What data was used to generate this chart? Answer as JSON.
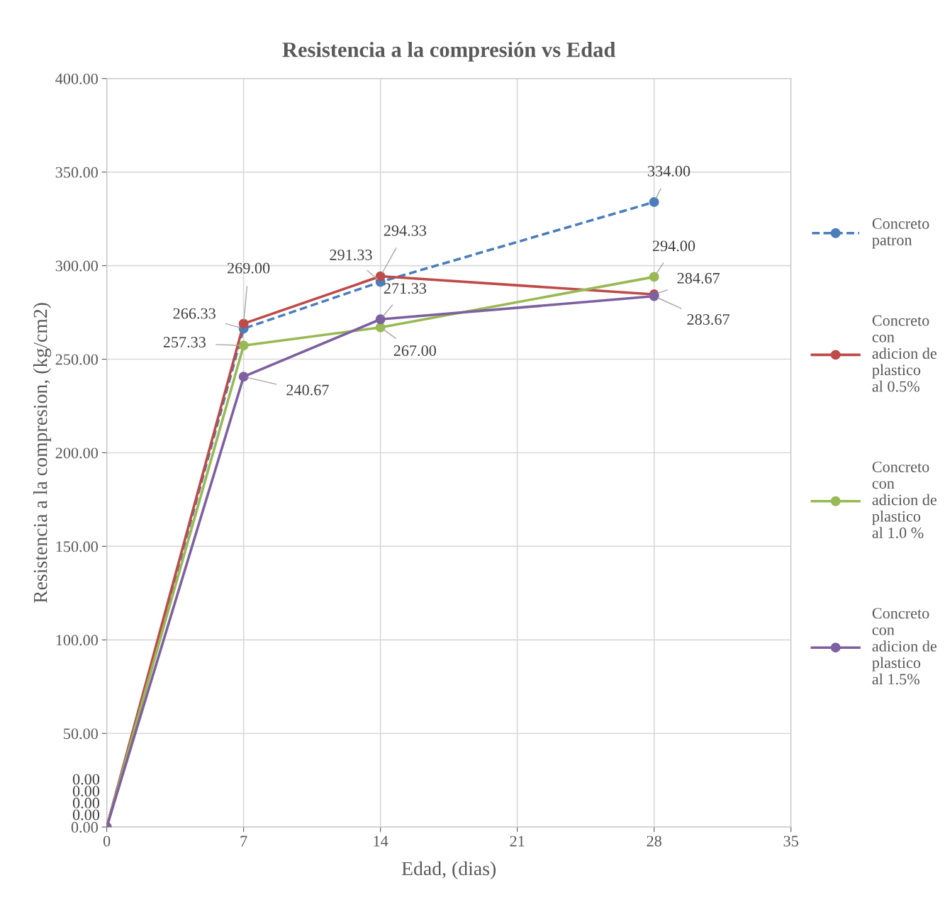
{
  "chart_data": {
    "type": "line",
    "title": "Resistencia a la compresión vs Edad",
    "xlabel": "Edad, (dias)",
    "ylabel": "Resistencia a la compresion, (kg/cm2)",
    "x": [
      0,
      7,
      14,
      28
    ],
    "series": [
      {
        "name": "Concreto patron",
        "color": "#4a7ebb",
        "line_style": "dashed",
        "values": [
          0,
          266.33,
          291.33,
          334.0
        ],
        "value_labels": [
          "0.00",
          "266.33",
          "291.33",
          "334.00"
        ]
      },
      {
        "name": "Concreto con adicion de plastico al 0.5%",
        "color": "#be4b48",
        "line_style": "solid",
        "values": [
          0,
          269.0,
          294.33,
          284.67
        ],
        "value_labels": [
          "0.00",
          "269.00",
          "294.33",
          "284.67"
        ]
      },
      {
        "name": "Concreto con adicion de plastico al 1.0 %",
        "color": "#98b954",
        "line_style": "solid",
        "values": [
          0,
          257.33,
          267.0,
          294.0
        ],
        "value_labels": [
          "0.00",
          "257.33",
          "267.00",
          "294.00"
        ]
      },
      {
        "name": "Concreto con adicion de plastico al 1.5%",
        "color": "#7d60a0",
        "line_style": "solid",
        "values": [
          0,
          240.67,
          271.33,
          283.67
        ],
        "value_labels": [
          "0.00",
          "240.67",
          "271.33",
          "283.67"
        ]
      }
    ],
    "xlim": [
      0,
      35
    ],
    "xticks": [
      0,
      7,
      14,
      21,
      28,
      35
    ],
    "ylim": [
      0,
      400
    ],
    "yticks": [
      {
        "value": 0,
        "label": "0.00"
      },
      {
        "value": 50,
        "label": "50.00"
      },
      {
        "value": 100,
        "label": "100.00"
      },
      {
        "value": 150,
        "label": "150.00"
      },
      {
        "value": 200,
        "label": "200.00"
      },
      {
        "value": 250,
        "label": "250.00"
      },
      {
        "value": 300,
        "label": "300.00"
      },
      {
        "value": 350,
        "label": "350.00"
      },
      {
        "value": 400,
        "label": "400.00"
      }
    ],
    "grid": true,
    "legend": "right",
    "marker": "circle"
  }
}
